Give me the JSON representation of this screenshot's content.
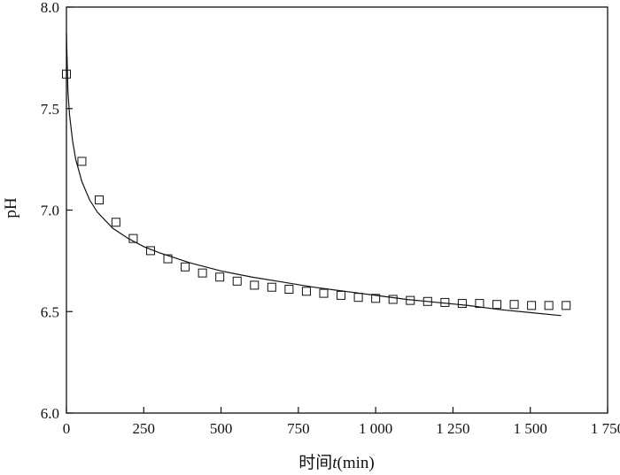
{
  "chart_data": {
    "type": "scatter",
    "xlabel": {
      "prefix": "时间",
      "variable": "t",
      "unit": "(min)"
    },
    "ylabel": "pH",
    "xlim": [
      0,
      1750
    ],
    "ylim": [
      6.0,
      8.0
    ],
    "xticks": [
      {
        "value": 0,
        "label": "0"
      },
      {
        "value": 250,
        "label": "250"
      },
      {
        "value": 500,
        "label": "500"
      },
      {
        "value": 750,
        "label": "750"
      },
      {
        "value": 1000,
        "label": "1 000"
      },
      {
        "value": 1250,
        "label": "1 250"
      },
      {
        "value": 1500,
        "label": "1 500"
      },
      {
        "value": 1750,
        "label": "1 750"
      }
    ],
    "yticks": [
      {
        "value": 6.0,
        "label": "6.0"
      },
      {
        "value": 6.5,
        "label": "6.5"
      },
      {
        "value": 7.0,
        "label": "7.0"
      },
      {
        "value": 7.5,
        "label": "7.5"
      },
      {
        "value": 8.0,
        "label": "8.0"
      }
    ],
    "grid": false,
    "legend": "none",
    "series": [
      {
        "kind": "markers",
        "marker": "open-square",
        "x": [
          0,
          50,
          106,
          160,
          216,
          272,
          328,
          384,
          440,
          496,
          552,
          608,
          664,
          720,
          776,
          832,
          888,
          944,
          1000,
          1056,
          1112,
          1168,
          1224,
          1280,
          1336,
          1392,
          1448,
          1504,
          1560,
          1616
        ],
        "y": [
          7.67,
          7.24,
          7.05,
          6.94,
          6.86,
          6.8,
          6.76,
          6.72,
          6.69,
          6.67,
          6.65,
          6.63,
          6.62,
          6.61,
          6.6,
          6.59,
          6.58,
          6.57,
          6.565,
          6.56,
          6.555,
          6.55,
          6.545,
          6.54,
          6.54,
          6.535,
          6.535,
          6.53,
          6.53,
          6.53
        ]
      },
      {
        "kind": "line",
        "x": [
          0,
          5,
          10,
          20,
          30,
          50,
          75,
          100,
          150,
          200,
          250,
          300,
          400,
          500,
          600,
          700,
          800,
          900,
          1000,
          1100,
          1200,
          1300,
          1400,
          1500,
          1600
        ],
        "y": [
          7.87,
          7.58,
          7.47,
          7.34,
          7.25,
          7.14,
          7.05,
          6.99,
          6.91,
          6.86,
          6.82,
          6.79,
          6.74,
          6.7,
          6.67,
          6.645,
          6.62,
          6.6,
          6.58,
          6.56,
          6.545,
          6.53,
          6.51,
          6.495,
          6.48
        ]
      }
    ],
    "colors": {
      "ink": "#111111",
      "background": "#ffffff"
    }
  }
}
